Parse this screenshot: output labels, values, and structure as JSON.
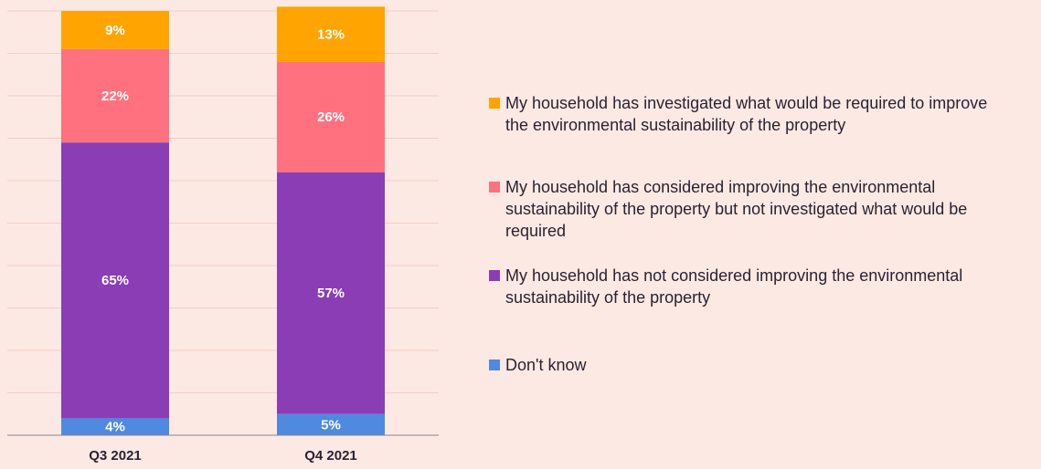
{
  "chart_data": {
    "type": "stacked_bar",
    "categories": [
      "Q3 2021",
      "Q4 2021"
    ],
    "series": [
      {
        "name": "Don't know",
        "color": "#4f8ae0",
        "values": [
          4,
          5
        ],
        "value_labels": [
          "4%",
          "5%"
        ]
      },
      {
        "name": "My household has not considered improving the environmental sustainability of the property",
        "color": "#8a3db5",
        "values": [
          65,
          57
        ],
        "value_labels": [
          "65%",
          "57%"
        ]
      },
      {
        "name": "My household has considered improving the environmental sustainability of the property but not investigated what would be required",
        "color": "#ff717f",
        "values": [
          22,
          26
        ],
        "value_labels": [
          "22%",
          "26%"
        ]
      },
      {
        "name": "My household has investigated what would be required to improve the environmental sustainability of the property",
        "color": "#ffa400",
        "values": [
          9,
          13
        ],
        "value_labels": [
          "9%",
          "13%"
        ]
      }
    ],
    "ylim": [
      0,
      100
    ],
    "yticks": [
      0,
      10,
      20,
      30,
      40,
      50,
      60,
      70,
      80,
      90,
      100
    ],
    "grid": true,
    "legend": "right"
  }
}
